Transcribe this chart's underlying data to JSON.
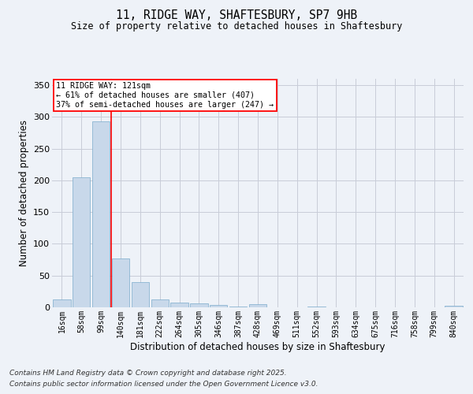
{
  "title_line1": "11, RIDGE WAY, SHAFTESBURY, SP7 9HB",
  "title_line2": "Size of property relative to detached houses in Shaftesbury",
  "xlabel": "Distribution of detached houses by size in Shaftesbury",
  "ylabel": "Number of detached properties",
  "footer_line1": "Contains HM Land Registry data © Crown copyright and database right 2025.",
  "footer_line2": "Contains public sector information licensed under the Open Government Licence v3.0.",
  "categories": [
    "16sqm",
    "58sqm",
    "99sqm",
    "140sqm",
    "181sqm",
    "222sqm",
    "264sqm",
    "305sqm",
    "346sqm",
    "387sqm",
    "428sqm",
    "469sqm",
    "511sqm",
    "552sqm",
    "593sqm",
    "634sqm",
    "675sqm",
    "716sqm",
    "758sqm",
    "799sqm",
    "840sqm"
  ],
  "values": [
    12,
    205,
    293,
    77,
    40,
    13,
    8,
    6,
    4,
    1,
    5,
    0,
    0,
    1,
    0,
    0,
    0,
    0,
    0,
    0,
    2
  ],
  "bar_color": "#c8d8ea",
  "bar_edge_color": "#7aabcc",
  "background_color": "#eef2f8",
  "grid_color": "#c8ccd8",
  "annotation_text": "11 RIDGE WAY: 121sqm\n← 61% of detached houses are smaller (407)\n37% of semi-detached houses are larger (247) →",
  "annotation_box_color": "white",
  "annotation_box_edge": "red",
  "vline_x_index": 2.5,
  "vline_color": "red",
  "ylim": [
    0,
    360
  ],
  "yticks": [
    0,
    50,
    100,
    150,
    200,
    250,
    300,
    350
  ]
}
